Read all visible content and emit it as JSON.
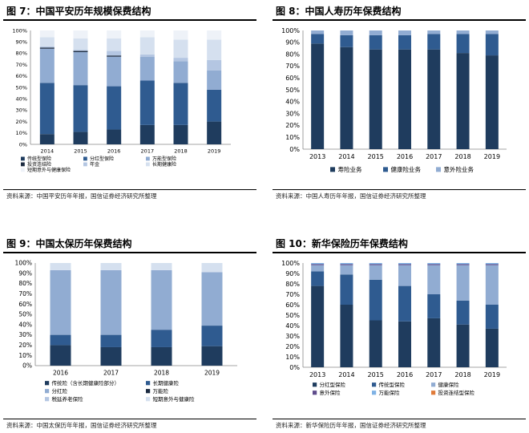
{
  "panels": [
    {
      "title": "图 7：中国平安历年规模保费结构",
      "source": "资料来源：中国平安历年年报，国信证券经济研究所整理"
    },
    {
      "title": "图 8：中国人寿历年保费结构",
      "source": "资料来源：中国人寿历年年报，国信证券经济研究所整理"
    },
    {
      "title": "图 9：中国太保历年保费结构",
      "source": "资料来源：中国太保历年年报，国信证券经济研究所整理"
    },
    {
      "title": "图 10：新华保险历年保费结构",
      "source": "资料来源：新华保险历年年报，国信证券经济研究所整理"
    }
  ],
  "chart_data": [
    {
      "type": "bar",
      "stacked": true,
      "categories": [
        "2014",
        "2015",
        "2016",
        "2017",
        "2018",
        "2019"
      ],
      "ylim": [
        0,
        100
      ],
      "yticks": [
        "0%",
        "10%",
        "20%",
        "30%",
        "40%",
        "50%",
        "60%",
        "70%",
        "80%",
        "90%",
        "100%"
      ],
      "series": [
        {
          "name": "传统型保险",
          "color": "#1f3c5e",
          "values": [
            9,
            11,
            13,
            17,
            17,
            20
          ]
        },
        {
          "name": "分红型保险",
          "color": "#2f5b90",
          "values": [
            45,
            41,
            38,
            39,
            37,
            28
          ]
        },
        {
          "name": "万能型保险",
          "color": "#91acd2",
          "values": [
            30,
            29,
            26,
            21,
            19,
            17
          ]
        },
        {
          "name": "投资连结险",
          "color": "#1b2a40",
          "values": [
            1,
            1,
            1,
            0,
            0,
            0
          ]
        },
        {
          "name": "年金",
          "color": "#b4c6e2",
          "values": [
            1,
            1,
            4,
            2,
            3,
            9
          ]
        },
        {
          "name": "长期健康险",
          "color": "#d5e0ef",
          "values": [
            8,
            10,
            11,
            15,
            16,
            18
          ]
        },
        {
          "name": "短期意外与健康保险",
          "color": "#eef2f8",
          "values": [
            6,
            7,
            7,
            6,
            8,
            8
          ]
        }
      ]
    },
    {
      "type": "bar",
      "stacked": true,
      "categories": [
        "2013",
        "2014",
        "2015",
        "2016",
        "2017",
        "2018",
        "2019"
      ],
      "ylim": [
        0,
        100
      ],
      "yticks": [
        "0%",
        "10%",
        "20%",
        "30%",
        "40%",
        "50%",
        "60%",
        "70%",
        "80%",
        "90%",
        "100%"
      ],
      "series": [
        {
          "name": "寿险业务",
          "color": "#1f3c5e",
          "values": [
            89,
            86,
            84,
            84,
            84,
            81,
            79
          ]
        },
        {
          "name": "健康险业务",
          "color": "#2f5b90",
          "values": [
            8,
            10,
            12,
            12,
            13,
            16,
            18
          ]
        },
        {
          "name": "意外险业务",
          "color": "#91acd2",
          "values": [
            3,
            4,
            4,
            4,
            3,
            3,
            3
          ]
        }
      ]
    },
    {
      "type": "bar",
      "stacked": true,
      "categories": [
        "2016",
        "2017",
        "2018",
        "2019"
      ],
      "ylim": [
        0,
        100
      ],
      "yticks": [
        "0%",
        "10%",
        "20%",
        "30%",
        "40%",
        "50%",
        "60%",
        "70%",
        "80%",
        "90%",
        "100%"
      ],
      "series": [
        {
          "name": "传统险（含长期健康险部分）",
          "color": "#1f3c5e",
          "values": [
            20,
            18,
            18,
            19
          ]
        },
        {
          "name": "长期健康险",
          "color": "#2f5b90",
          "values": [
            10,
            12,
            17,
            20
          ]
        },
        {
          "name": "分红险",
          "color": "#91acd2",
          "values": [
            63,
            63,
            58,
            52
          ]
        },
        {
          "name": "万能险",
          "color": "#1b2a40",
          "values": [
            0,
            0,
            0,
            0
          ]
        },
        {
          "name": "税延养老保险",
          "color": "#b4c6e2",
          "values": [
            0,
            0,
            0,
            0
          ]
        },
        {
          "name": "短期意外与健康险",
          "color": "#d5e0ef",
          "values": [
            7,
            7,
            7,
            9
          ]
        }
      ]
    },
    {
      "type": "bar",
      "stacked": true,
      "categories": [
        "2013",
        "2014",
        "2015",
        "2016",
        "2017",
        "2018",
        "2019"
      ],
      "ylim": [
        0,
        100
      ],
      "yticks": [
        "0%",
        "10%",
        "20%",
        "30%",
        "40%",
        "50%",
        "60%",
        "70%",
        "80%",
        "90%",
        "100%"
      ],
      "series": [
        {
          "name": "分红型保险",
          "color": "#1f3c5e",
          "values": [
            78,
            60,
            45,
            44,
            47,
            41,
            37
          ]
        },
        {
          "name": "传统型保险",
          "color": "#2f5b90",
          "values": [
            14,
            29,
            39,
            34,
            23,
            23,
            23
          ]
        },
        {
          "name": "健康保险",
          "color": "#91acd2",
          "values": [
            6,
            9,
            14,
            20,
            28,
            34,
            38
          ]
        },
        {
          "name": "意外保险",
          "color": "#5e4b8b",
          "values": [
            1,
            1,
            1,
            1,
            1,
            1,
            1
          ]
        },
        {
          "name": "万能保险",
          "color": "#7fb2e5",
          "values": [
            1,
            1,
            1,
            1,
            1,
            1,
            1
          ]
        },
        {
          "name": "投资连结型保险",
          "color": "#e07b39",
          "values": [
            0,
            0,
            0,
            0,
            0,
            0,
            0
          ]
        }
      ]
    }
  ]
}
